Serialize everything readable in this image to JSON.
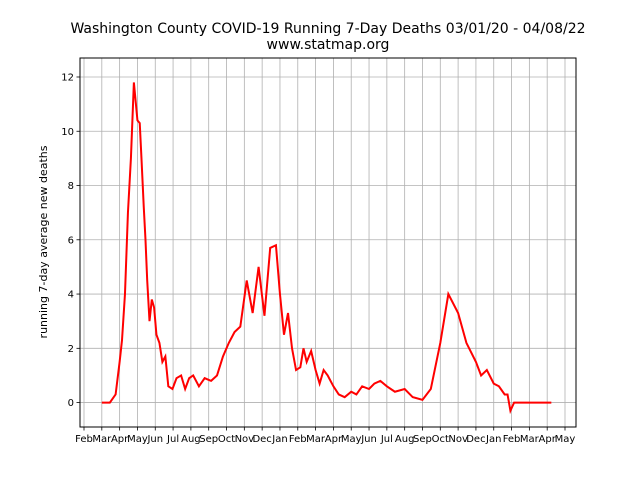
{
  "chart_data": {
    "type": "line",
    "title": "Washington County COVID-19 Running 7-Day Deaths 03/01/20 - 04/08/22",
    "subtitle": "www.statmap.org",
    "xlabel": "",
    "ylabel": "running 7-day average new deaths",
    "ylim": [
      -0.9,
      12.7
    ],
    "yticks": [
      0,
      2,
      4,
      6,
      8,
      10,
      12
    ],
    "grid": true,
    "line_color": "#ff0000",
    "x_tick_labels": [
      "Feb",
      "Mar",
      "Apr",
      "May",
      "Jun",
      "Jul",
      "Aug",
      "Sep",
      "Oct",
      "Nov",
      "Dec",
      "Jan",
      "Feb",
      "Mar",
      "Apr",
      "May",
      "Jun",
      "Jul",
      "Aug",
      "Sep",
      "Oct",
      "Nov",
      "Dec",
      "Jan",
      "Feb",
      "Mar",
      "Apr",
      "May"
    ],
    "series": [
      {
        "x": [
          "2020-03-01",
          "2020-03-15",
          "2020-03-25",
          "2020-04-01",
          "2020-04-05",
          "2020-04-10",
          "2020-04-15",
          "2020-04-20",
          "2020-04-25",
          "2020-05-01",
          "2020-05-05",
          "2020-05-08",
          "2020-05-12",
          "2020-05-15",
          "2020-05-18",
          "2020-05-22",
          "2020-05-26",
          "2020-05-30",
          "2020-06-03",
          "2020-06-08",
          "2020-06-13",
          "2020-06-18",
          "2020-06-23",
          "2020-06-30",
          "2020-07-07",
          "2020-07-15",
          "2020-07-22",
          "2020-07-29",
          "2020-08-05",
          "2020-08-15",
          "2020-08-25",
          "2020-09-05",
          "2020-09-15",
          "2020-09-25",
          "2020-10-05",
          "2020-10-15",
          "2020-10-25",
          "2020-11-05",
          "2020-11-15",
          "2020-11-25",
          "2020-12-05",
          "2020-12-15",
          "2020-12-25",
          "2021-01-01",
          "2021-01-08",
          "2021-01-15",
          "2021-01-22",
          "2021-01-29",
          "2021-02-05",
          "2021-02-10",
          "2021-02-15",
          "2021-02-22",
          "2021-03-01",
          "2021-03-08",
          "2021-03-15",
          "2021-03-22",
          "2021-04-01",
          "2021-04-10",
          "2021-04-20",
          "2021-05-01",
          "2021-05-10",
          "2021-05-20",
          "2021-06-01",
          "2021-06-10",
          "2021-06-20",
          "2021-07-01",
          "2021-07-15",
          "2021-08-01",
          "2021-08-15",
          "2021-09-01",
          "2021-09-15",
          "2021-10-01",
          "2021-10-15",
          "2021-11-01",
          "2021-11-15",
          "2021-12-01",
          "2021-12-10",
          "2021-12-20",
          "2022-01-01",
          "2022-01-10",
          "2022-01-20",
          "2022-01-25",
          "2022-01-30",
          "2022-02-05",
          "2022-02-12",
          "2022-02-20",
          "2022-03-01",
          "2022-03-10",
          "2022-03-20",
          "2022-04-01",
          "2022-04-08"
        ],
        "y": [
          0,
          0,
          0.3,
          1.5,
          2.3,
          4.0,
          7.0,
          9.0,
          11.8,
          10.4,
          10.3,
          9.0,
          7.2,
          6.0,
          4.5,
          3.0,
          3.8,
          3.5,
          2.5,
          2.2,
          1.5,
          1.7,
          0.6,
          0.5,
          0.9,
          1.0,
          0.5,
          0.9,
          1.0,
          0.6,
          0.9,
          0.8,
          1.0,
          1.7,
          2.2,
          2.6,
          2.8,
          4.5,
          3.3,
          5.0,
          3.2,
          5.7,
          5.8,
          4.0,
          2.5,
          3.3,
          2.0,
          1.2,
          1.3,
          2.0,
          1.5,
          1.9,
          1.2,
          0.7,
          1.2,
          1.0,
          0.6,
          0.3,
          0.2,
          0.4,
          0.3,
          0.6,
          0.5,
          0.7,
          0.8,
          0.6,
          0.4,
          0.5,
          0.2,
          0.1,
          0.5,
          2.2,
          4.0,
          3.3,
          2.2,
          1.5,
          1.0,
          1.2,
          0.7,
          0.6,
          0.3,
          0.3,
          -0.3,
          0.0,
          0.0,
          0.0,
          0.0,
          0.0,
          0.0,
          0.0,
          0.0
        ]
      }
    ]
  }
}
